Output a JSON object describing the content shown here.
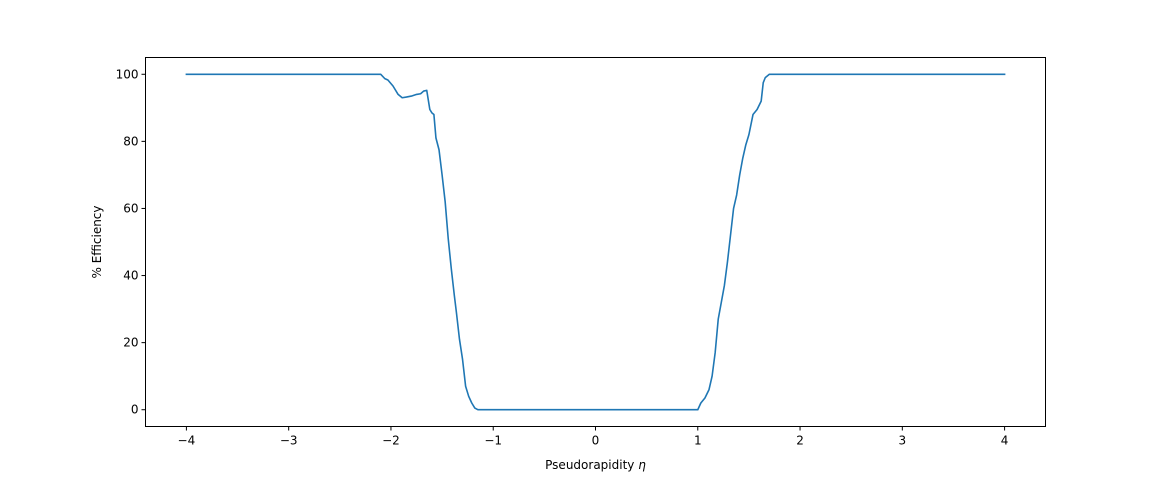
{
  "chart_data": {
    "type": "line",
    "title": "",
    "xlabel": "Pseudorapidity",
    "xlabel_symbol": "η",
    "ylabel": "% Efficiency",
    "xlim": [
      -4.4,
      4.4
    ],
    "ylim": [
      -5,
      105
    ],
    "grid": false,
    "xticks": [
      -4,
      -3,
      -2,
      -1,
      0,
      1,
      2,
      3,
      4
    ],
    "xtick_labels": [
      "−4",
      "−3",
      "−2",
      "−1",
      "0",
      "1",
      "2",
      "3",
      "4"
    ],
    "yticks": [
      0,
      20,
      40,
      60,
      80,
      100
    ],
    "ytick_labels": [
      "0",
      "20",
      "40",
      "60",
      "80",
      "100"
    ],
    "series": [
      {
        "color": "#1f77b4",
        "x": [
          -4.0,
          -2.1,
          -2.06,
          -2.03,
          -1.98,
          -1.93,
          -1.89,
          -1.85,
          -1.8,
          -1.75,
          -1.71,
          -1.68,
          -1.65,
          -1.62,
          -1.6,
          -1.58,
          -1.56,
          -1.53,
          -1.5,
          -1.47,
          -1.44,
          -1.41,
          -1.38,
          -1.36,
          -1.33,
          -1.3,
          -1.27,
          -1.24,
          -1.21,
          -1.18,
          -1.15,
          -1.12,
          -1.08,
          -1.04,
          -1.0,
          1.0,
          1.03,
          1.07,
          1.11,
          1.14,
          1.17,
          1.2,
          1.23,
          1.26,
          1.29,
          1.32,
          1.35,
          1.38,
          1.41,
          1.44,
          1.47,
          1.5,
          1.54,
          1.58,
          1.62,
          1.64,
          1.66,
          1.7,
          4.0
        ],
        "y": [
          100,
          100,
          98.7,
          98.3,
          96.5,
          94,
          93,
          93.2,
          93.5,
          94,
          94.2,
          95,
          95.2,
          89.5,
          88.5,
          88,
          81,
          77.5,
          70,
          62,
          51,
          42,
          34,
          29,
          21,
          15,
          7,
          4,
          2,
          0.5,
          0,
          0,
          0,
          0,
          0,
          0,
          2,
          3.5,
          6,
          10,
          17,
          27,
          32,
          37,
          44,
          52,
          60,
          64,
          70,
          75,
          79,
          82,
          88,
          89.5,
          92,
          97.5,
          99,
          100,
          100
        ]
      }
    ]
  }
}
